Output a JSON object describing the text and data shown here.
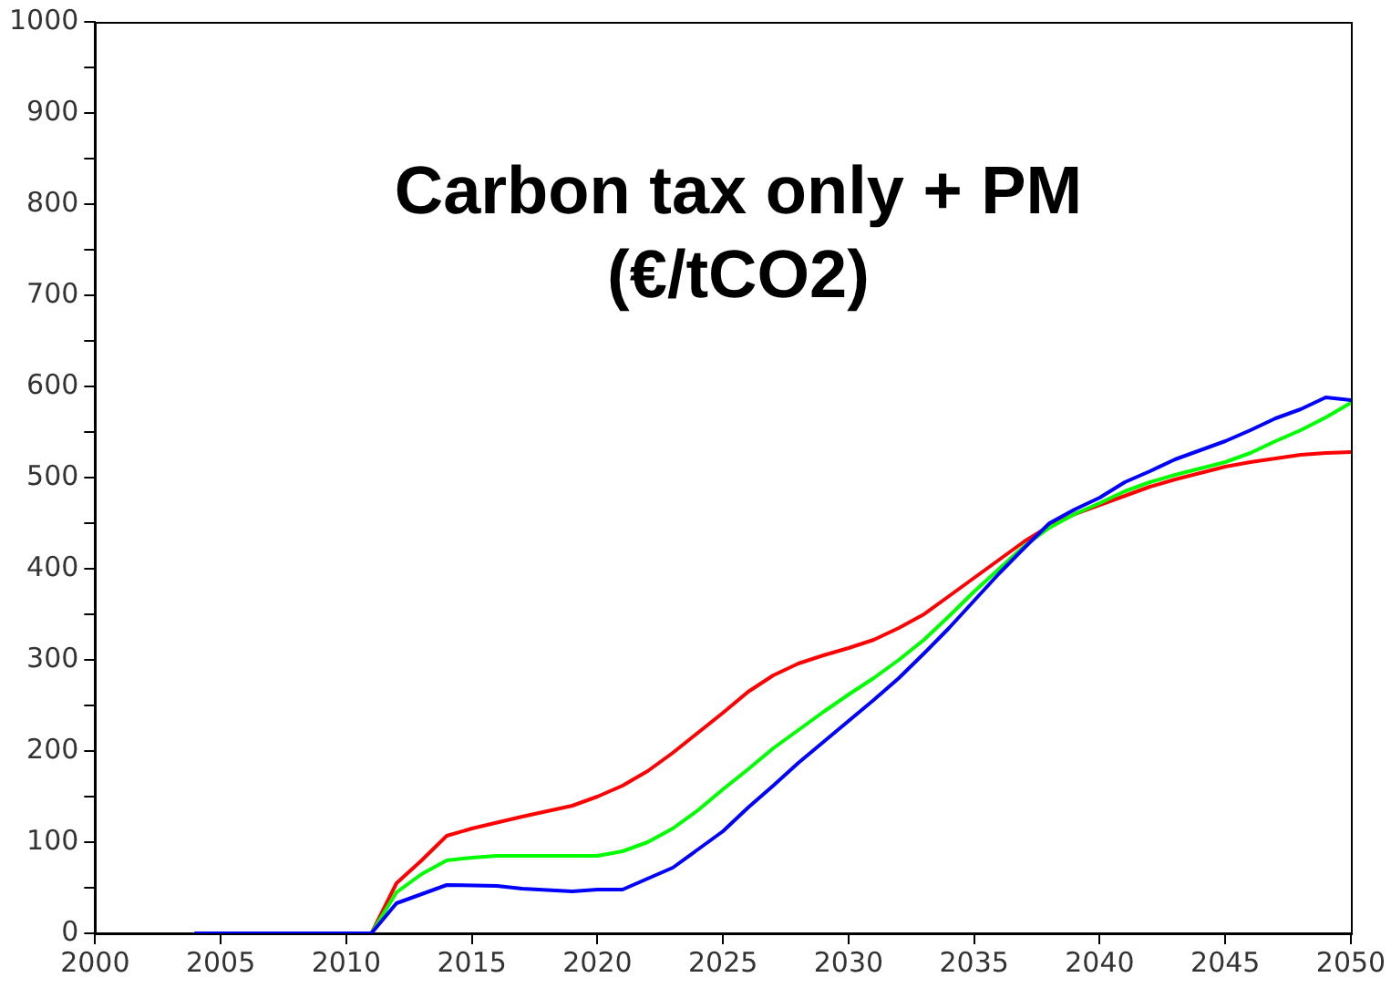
{
  "chart_data": {
    "type": "line",
    "title": "Carbon tax only + PM (€/tCO2)",
    "xlim": [
      2000,
      2050
    ],
    "xticks": [
      2000,
      2005,
      2010,
      2015,
      2020,
      2025,
      2030,
      2035,
      2040,
      2045,
      2050
    ],
    "ylim": [
      0,
      1000
    ],
    "yticks": [
      0,
      {
        "value": 50,
        "label": null
      },
      100,
      {
        "value": 150,
        "label": null
      },
      200,
      {
        "value": 250,
        "label": null
      },
      300,
      {
        "value": 350,
        "label": null
      },
      400,
      {
        "value": 450,
        "label": null
      },
      500,
      {
        "value": 550,
        "label": null
      },
      600,
      {
        "value": 650,
        "label": null
      },
      700,
      {
        "value": 750,
        "label": null
      },
      800,
      {
        "value": 850,
        "label": null
      },
      900,
      {
        "value": 950,
        "label": null
      },
      1000
    ],
    "grid": false,
    "legend": false,
    "marker": "none",
    "line_style": "solid",
    "series": [
      {
        "color": "#0000ff",
        "x": [
          2004,
          2011,
          2012,
          2013,
          2014,
          2016,
          2017,
          2019,
          2020,
          2021,
          2022,
          2023,
          2024,
          2025,
          2026,
          2027,
          2028,
          2029,
          2030,
          2031,
          2032,
          2033,
          2034,
          2035,
          2036,
          2037,
          2038,
          2039,
          2040,
          2041,
          2042,
          2043,
          2044,
          2045,
          2046,
          2047,
          2048,
          2049,
          2050
        ],
        "values": [
          0,
          0,
          33,
          43,
          53,
          52,
          49,
          46,
          48,
          48,
          60,
          72,
          92,
          112,
          138,
          162,
          187,
          210,
          233,
          256,
          280,
          307,
          335,
          365,
          395,
          423,
          450,
          465,
          478,
          495,
          507,
          520,
          530,
          540,
          552,
          565,
          575,
          588,
          585
        ]
      },
      {
        "color": "#00ff00",
        "x": [
          2004,
          2011,
          2012,
          2013,
          2014,
          2015,
          2016,
          2018,
          2020,
          2021,
          2022,
          2023,
          2024,
          2025,
          2026,
          2027,
          2028,
          2029,
          2030,
          2031,
          2032,
          2033,
          2034,
          2035,
          2036,
          2037,
          2038,
          2039,
          2040,
          2041,
          2042,
          2043,
          2044,
          2045,
          2046,
          2047,
          2048,
          2049,
          2050
        ],
        "values": [
          0,
          0,
          45,
          65,
          80,
          83,
          85,
          85,
          85,
          90,
          100,
          115,
          135,
          158,
          180,
          203,
          223,
          243,
          262,
          280,
          300,
          322,
          348,
          375,
          400,
          425,
          445,
          460,
          472,
          485,
          495,
          503,
          510,
          517,
          527,
          540,
          552,
          566,
          582
        ]
      },
      {
        "color": "#ff0000",
        "x": [
          2004,
          2011,
          2012,
          2013,
          2014,
          2015,
          2017,
          2019,
          2020,
          2021,
          2022,
          2023,
          2024,
          2025,
          2026,
          2027,
          2028,
          2029,
          2030,
          2031,
          2032,
          2033,
          2034,
          2035,
          2036,
          2037,
          2038,
          2039,
          2040,
          2041,
          2042,
          2043,
          2044,
          2045,
          2046,
          2047,
          2048,
          2049,
          2050
        ],
        "values": [
          0,
          0,
          55,
          80,
          107,
          115,
          128,
          140,
          150,
          162,
          178,
          198,
          220,
          242,
          265,
          283,
          296,
          305,
          313,
          322,
          335,
          350,
          370,
          390,
          410,
          430,
          447,
          460,
          470,
          480,
          490,
          498,
          505,
          512,
          517,
          521,
          525,
          527,
          528
        ]
      }
    ]
  }
}
